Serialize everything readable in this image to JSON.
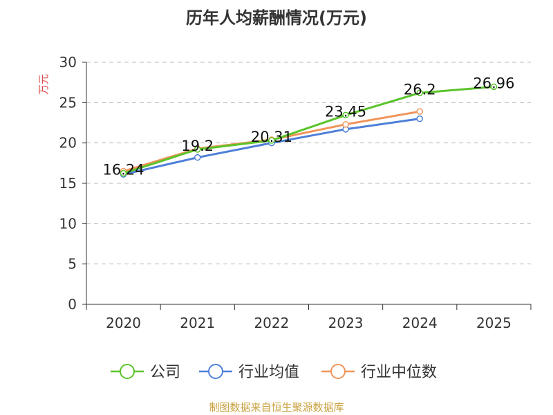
{
  "chart_data": {
    "type": "line",
    "title": "历年人均薪酬情况(万元)",
    "ylabel": "万元",
    "xlabel": "",
    "categories": [
      "2020",
      "2021",
      "2022",
      "2023",
      "2024",
      "2025"
    ],
    "ylim": [
      0,
      30
    ],
    "yticks": [
      0,
      5,
      10,
      15,
      20,
      25,
      30
    ],
    "grid": true,
    "legend_position": "bottom",
    "series": [
      {
        "name": "公司",
        "color": "#5ac42a",
        "values": [
          16.24,
          19.2,
          20.31,
          23.45,
          26.2,
          26.96
        ],
        "labels": [
          "16.24",
          "19.2",
          "20.31",
          "23.45",
          "26.2",
          "26.96"
        ]
      },
      {
        "name": "行业均值",
        "color": "#4e7fd8",
        "values": [
          16.1,
          18.2,
          20.0,
          21.7,
          23.0,
          null
        ]
      },
      {
        "name": "行业中位数",
        "color": "#f0955b",
        "values": [
          16.5,
          19.3,
          20.4,
          22.3,
          23.9,
          null
        ]
      }
    ],
    "source": "制图数据来自恒生聚源数据库"
  }
}
